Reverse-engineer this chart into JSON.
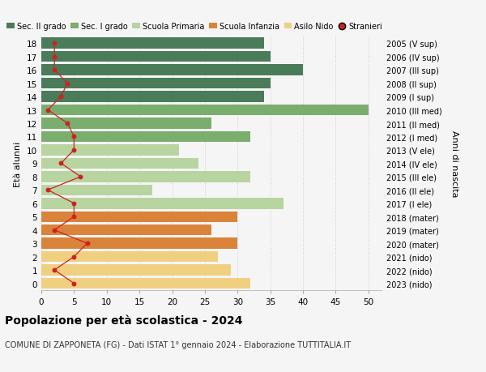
{
  "ages": [
    18,
    17,
    16,
    15,
    14,
    13,
    12,
    11,
    10,
    9,
    8,
    7,
    6,
    5,
    4,
    3,
    2,
    1,
    0
  ],
  "right_labels": [
    "2005 (V sup)",
    "2006 (IV sup)",
    "2007 (III sup)",
    "2008 (II sup)",
    "2009 (I sup)",
    "2010 (III med)",
    "2011 (II med)",
    "2012 (I med)",
    "2013 (V ele)",
    "2014 (IV ele)",
    "2015 (III ele)",
    "2016 (II ele)",
    "2017 (I ele)",
    "2018 (mater)",
    "2019 (mater)",
    "2020 (mater)",
    "2021 (nido)",
    "2022 (nido)",
    "2023 (nido)"
  ],
  "bar_values": [
    34,
    35,
    40,
    35,
    34,
    50,
    26,
    32,
    21,
    24,
    32,
    17,
    37,
    30,
    26,
    30,
    27,
    29,
    32
  ],
  "bar_colors": [
    "#4a7c59",
    "#4a7c59",
    "#4a7c59",
    "#4a7c59",
    "#4a7c59",
    "#7aad6e",
    "#7aad6e",
    "#7aad6e",
    "#b8d4a0",
    "#b8d4a0",
    "#b8d4a0",
    "#b8d4a0",
    "#b8d4a0",
    "#d9843a",
    "#d9843a",
    "#d9843a",
    "#f0d080",
    "#f0d080",
    "#f0d080"
  ],
  "stranieri_values": [
    2,
    2,
    2,
    4,
    3,
    1,
    4,
    5,
    5,
    3,
    6,
    1,
    5,
    5,
    2,
    7,
    5,
    2,
    5
  ],
  "legend_labels": [
    "Sec. II grado",
    "Sec. I grado",
    "Scuola Primaria",
    "Scuola Infanzia",
    "Asilo Nido",
    "Stranieri"
  ],
  "legend_colors": [
    "#4a7c59",
    "#7aad6e",
    "#b8d4a0",
    "#d9843a",
    "#f0d080",
    "#cc2222"
  ],
  "xlabel_values": [
    0,
    5,
    10,
    15,
    20,
    25,
    30,
    35,
    40,
    45,
    50
  ],
  "xlim": [
    0,
    52
  ],
  "title_main": "Popolazione per età scolastica - 2024",
  "title_sub": "COMUNE DI ZAPPONETA (FG) - Dati ISTAT 1° gennaio 2024 - Elaborazione TUTTITALIA.IT",
  "ylabel_left": "Età alunni",
  "ylabel_right": "Anni di nascita",
  "bg_color": "#f5f5f5",
  "grid_color": "#cccccc"
}
